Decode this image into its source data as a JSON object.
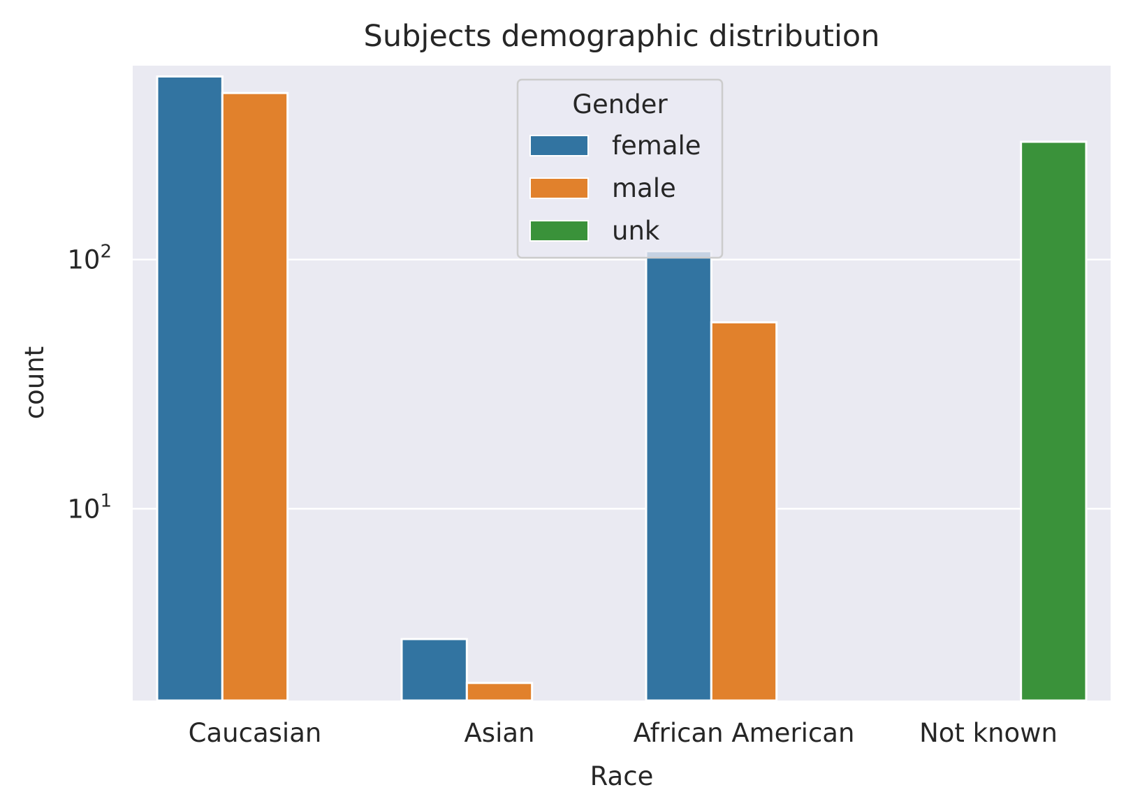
{
  "chart_data": {
    "type": "bar",
    "title": "Subjects demographic distribution",
    "xlabel": "Race",
    "ylabel": "count",
    "yscale": "log",
    "ylim": [
      1.7,
      600
    ],
    "yticks": [
      10,
      100
    ],
    "ytick_labels": [
      {
        "base": "10",
        "exp": "1"
      },
      {
        "base": "10",
        "exp": "2"
      }
    ],
    "categories": [
      "Caucasian",
      "Asian",
      "African American",
      "Not known"
    ],
    "series": [
      {
        "name": "female",
        "color": "#3274a1",
        "values": [
          543,
          3,
          108,
          null
        ]
      },
      {
        "name": "male",
        "color": "#e1812c",
        "values": [
          466,
          2,
          56,
          null
        ]
      },
      {
        "name": "unk",
        "color": "#3a923a",
        "values": [
          null,
          null,
          null,
          297
        ]
      }
    ],
    "legend": {
      "title": "Gender",
      "position": "top-center"
    },
    "grid": true,
    "background": "#eaeaf2"
  }
}
